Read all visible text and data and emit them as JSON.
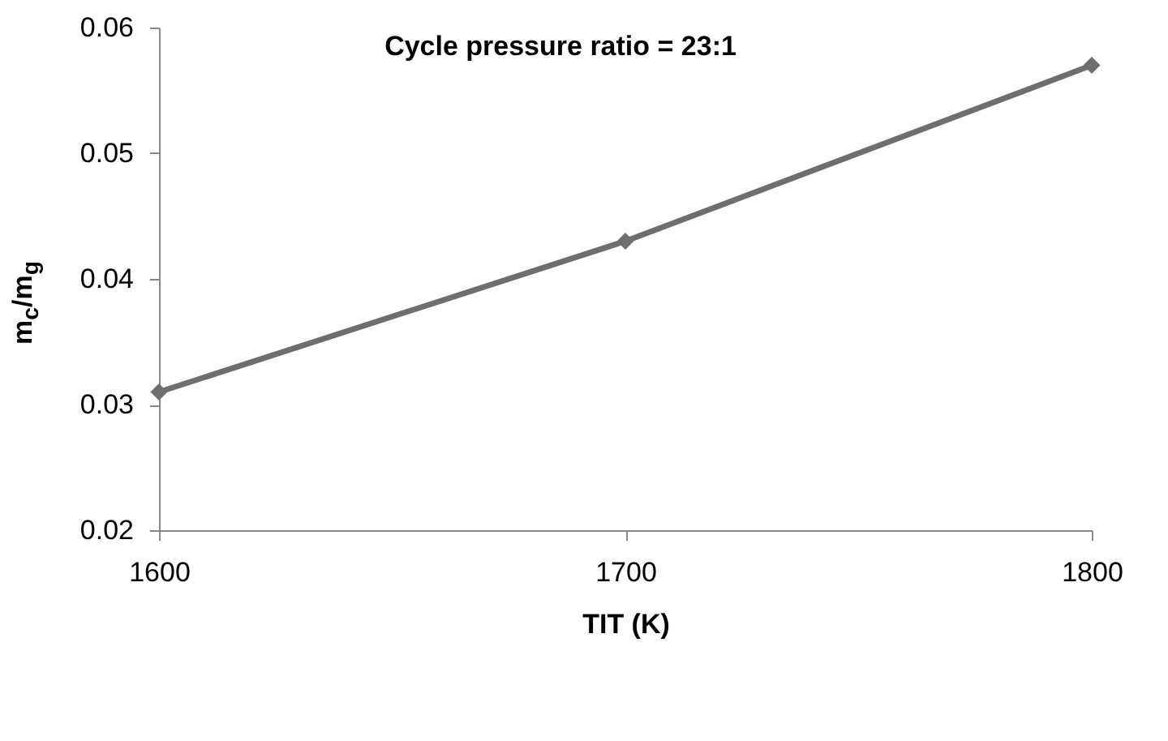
{
  "chart_data": {
    "type": "line",
    "title": "Cycle pressure ratio = 23:1",
    "xlabel": "TIT (K)",
    "ylabel": "m$_{c}$/m$_{g}$",
    "x": [
      1600,
      1700,
      1800
    ],
    "series": [
      {
        "color": "#6e6e6e",
        "values": [
          0.031,
          0.043,
          0.057
        ]
      }
    ],
    "xlim": [
      1600,
      1800
    ],
    "xticks": [
      1600,
      1700,
      1800
    ],
    "ylim": [
      0.02,
      0.06
    ],
    "yticks": [
      0.02,
      0.03,
      0.04,
      0.05,
      0.06
    ],
    "grid": false,
    "legend": false,
    "marker": "diamond",
    "line_style": "solid"
  }
}
